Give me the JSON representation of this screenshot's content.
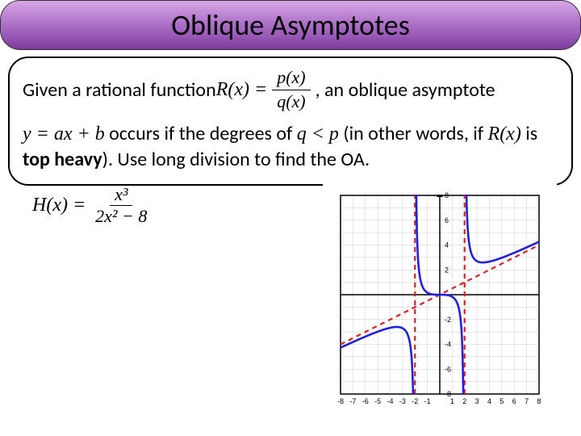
{
  "title": "Oblique Asymptotes",
  "body": {
    "p1a": "Given a rational function ",
    "p1b": " , an oblique asymptote",
    "func_lhs": "R(x) = ",
    "func_num": "p(x)",
    "func_den": "q(x)",
    "p2a": "y = ax + b",
    "p2b": " occurs if the degrees of ",
    "p2c": "q < p",
    "p2d": " (in other words, if ",
    "p2e": "R(x)",
    "p2f": " is ",
    "p2g": "top heavy",
    "p2h": "). Use long division to find the OA."
  },
  "example": {
    "lhs": "H(x) = ",
    "num": "x³",
    "den": "2x² − 8"
  },
  "chart": {
    "type": "line",
    "xlim": [
      -8,
      8
    ],
    "ylim": [
      -8,
      8
    ],
    "xtick_step": 1,
    "ytick_step": 2,
    "background_color": "#ffffff",
    "border_color": "#000000",
    "grid_color": "#cccccc",
    "axis_color": "#000000",
    "curve_color": "#2020e0",
    "curve_width": 2.6,
    "asymptote_color": "#e02020",
    "asymptote_width": 2.2,
    "asymptote_dash": "6,5",
    "vertical_asymptotes": [
      -2,
      2
    ],
    "oblique_asymptote": {
      "slope": 0.5,
      "intercept": 0
    },
    "x_labels": [
      "-8",
      "-7",
      "-6",
      "-5",
      "-4",
      "-3",
      "-2",
      "-1",
      "1",
      "2",
      "3",
      "4",
      "5",
      "6",
      "7",
      "8"
    ],
    "y_labels_pos": [
      "2",
      "4",
      "6",
      "8"
    ],
    "y_labels_neg": [
      "-2",
      "-4",
      "-6",
      "-8"
    ],
    "label_fontsize": 9,
    "label_color": "#000000"
  }
}
